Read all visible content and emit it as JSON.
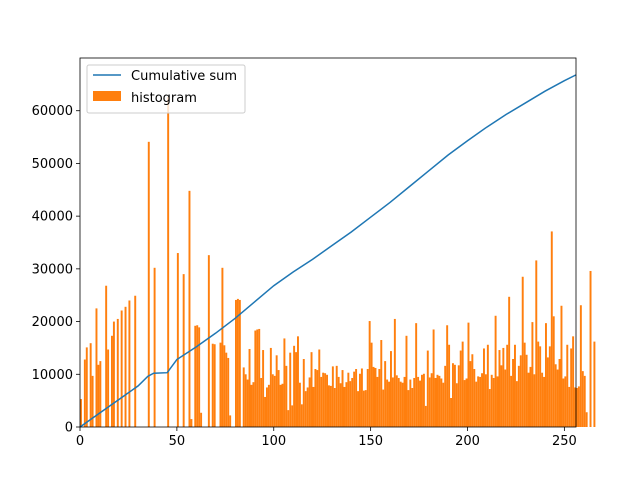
{
  "chart_data": {
    "type": "bar",
    "title": "",
    "xlabel": "",
    "ylabel": "",
    "xlim": [
      0,
      256
    ],
    "ylim": [
      0,
      70000
    ],
    "xticks": [
      0,
      50,
      100,
      150,
      200,
      250
    ],
    "yticks": [
      0,
      10000,
      20000,
      30000,
      40000,
      50000,
      60000
    ],
    "xtick_labels": [
      "0",
      "50",
      "100",
      "150",
      "200",
      "250"
    ],
    "ytick_labels": [
      "0",
      "10000",
      "20000",
      "30000",
      "40000",
      "50000",
      "60000"
    ],
    "grid": false,
    "legend": {
      "placement": "upper-left",
      "entries": [
        "Cumulative sum",
        "histogram"
      ]
    },
    "series": [
      {
        "name": "Cumulative sum",
        "kind": "line",
        "color": "#1f77b4",
        "points": [
          [
            0,
            0
          ],
          [
            10,
            2600
          ],
          [
            20,
            5200
          ],
          [
            30,
            7800
          ],
          [
            35,
            9600
          ],
          [
            38,
            10200
          ],
          [
            45,
            10300
          ],
          [
            50,
            12800
          ],
          [
            60,
            15200
          ],
          [
            70,
            17800
          ],
          [
            80,
            20600
          ],
          [
            90,
            23700
          ],
          [
            100,
            26800
          ],
          [
            110,
            29400
          ],
          [
            120,
            31800
          ],
          [
            130,
            34400
          ],
          [
            140,
            37000
          ],
          [
            150,
            39800
          ],
          [
            160,
            42600
          ],
          [
            170,
            45600
          ],
          [
            180,
            48600
          ],
          [
            190,
            51600
          ],
          [
            200,
            54300
          ],
          [
            210,
            56900
          ],
          [
            220,
            59300
          ],
          [
            230,
            61500
          ],
          [
            240,
            63700
          ],
          [
            250,
            65700
          ],
          [
            256,
            66800
          ]
        ]
      },
      {
        "name": "histogram",
        "kind": "bar",
        "color": "#ff7f0e",
        "values": [
          5300,
          0,
          12800,
          15100,
          0,
          15900,
          9700,
          0,
          22500,
          11800,
          12500,
          0,
          0,
          26800,
          14700,
          0,
          17300,
          20000,
          0,
          20500,
          0,
          22100,
          0,
          22800,
          0,
          24000,
          0,
          0,
          24900,
          0,
          0,
          0,
          0,
          0,
          0,
          54100,
          0,
          0,
          30200,
          0,
          0,
          0,
          0,
          0,
          0,
          62600,
          0,
          0,
          0,
          0,
          33000,
          0,
          0,
          29000,
          0,
          0,
          44800,
          1500,
          0,
          19200,
          19300,
          18900,
          2700,
          0,
          0,
          0,
          32600,
          0,
          15800,
          15700,
          0,
          0,
          16000,
          30200,
          15500,
          14100,
          13100,
          2200,
          0,
          0,
          24100,
          24300,
          24100,
          0,
          11300,
          10000,
          9000,
          14800,
          8000,
          8500,
          18300,
          18500,
          18600,
          9300,
          14600,
          5700,
          7500,
          8000,
          15000,
          10000,
          9700,
          13600,
          10800,
          8000,
          8200,
          16800,
          11600,
          3200,
          14100,
          4100,
          15400,
          14200,
          17200,
          8400,
          4300,
          12900,
          6800,
          7500,
          9400,
          14200,
          7600,
          11000,
          10800,
          14700,
          9500,
          10300,
          10200,
          9900,
          7900,
          7800,
          11500,
          7400,
          11600,
          9500,
          8300,
          10800,
          7600,
          8500,
          10300,
          8700,
          9300,
          10500,
          11000,
          6800,
          10100,
          11100,
          6900,
          7000,
          11000,
          20100,
          16000,
          11400,
          11200,
          9500,
          11000,
          16500,
          7100,
          12500,
          9000,
          8600,
          14400,
          9400,
          20500,
          9800,
          9300,
          8600,
          8400,
          9500,
          17300,
          7000,
          9000,
          7400,
          9300,
          19700,
          9500,
          8800,
          9900,
          10100,
          4000,
          14500,
          9400,
          10200,
          18500,
          9300,
          9900,
          9700,
          9200,
          8400,
          11600,
          19300,
          15600,
          5500,
          12100,
          11800,
          8300,
          11700,
          14500,
          16200,
          8900,
          9200,
          19800,
          12500,
          13800,
          11000,
          8600,
          9600,
          9500,
          10200,
          14900,
          10000,
          15600,
          7200,
          9900,
          9300,
          21100,
          9600,
          14600,
          11700,
          15000,
          10900,
          15600,
          24700,
          9700,
          12900,
          15600,
          8700,
          11600,
          13600,
          28500,
          16000,
          13700,
          10300,
          11400,
          19900,
          10000,
          31600,
          16200,
          15300,
          10300,
          9500,
          19700,
          13200,
          15300,
          37100,
          21000,
          11900,
          10900,
          12900,
          23000,
          9200,
          9600,
          15600,
          7600,
          14900,
          17200,
          7500,
          7400,
          7700,
          23100,
          10600,
          9700,
          2800,
          0,
          29600,
          0,
          16200
        ]
      }
    ]
  }
}
